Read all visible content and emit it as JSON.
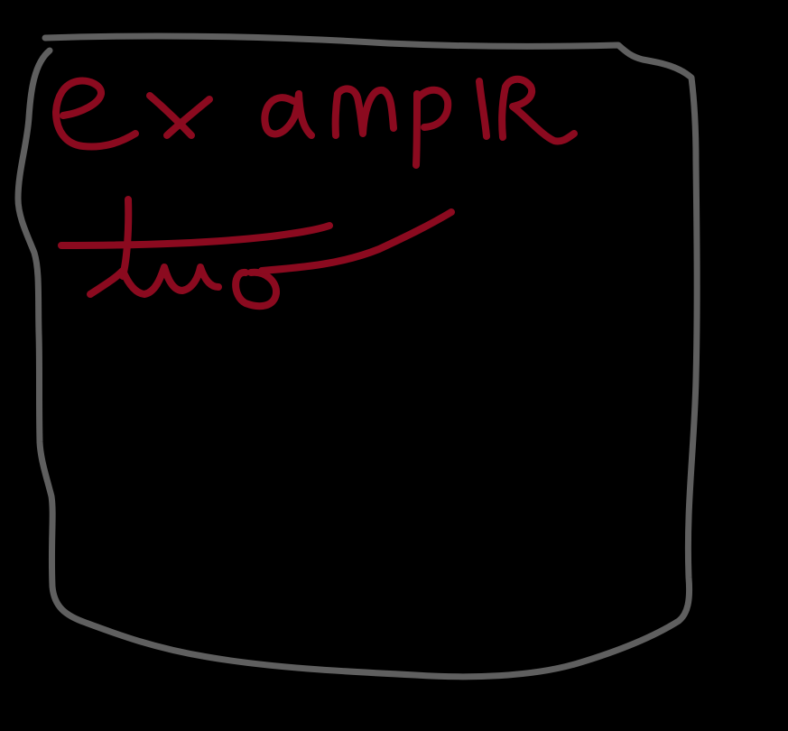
{
  "canvas": {
    "background": "#000000"
  },
  "frame": {
    "color": "#5f5f5f"
  },
  "ink": {
    "color": "#8b0a1f"
  },
  "handwriting": {
    "line1": "example",
    "line2": "two"
  }
}
